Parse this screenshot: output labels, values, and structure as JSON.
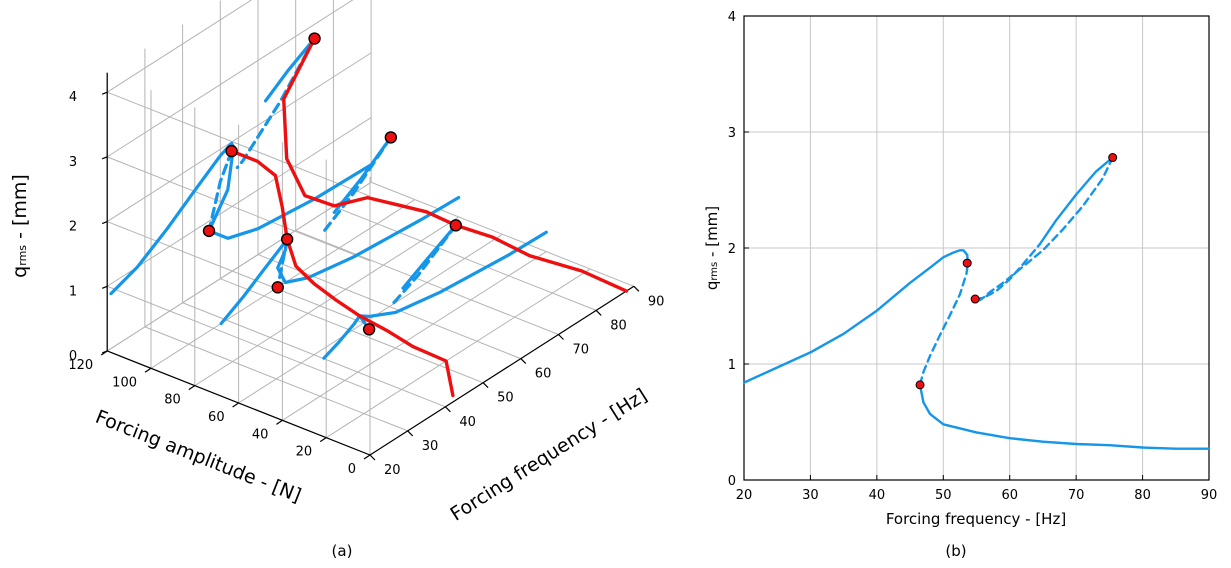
{
  "panel_a": {
    "caption": "(a)",
    "xlabel": "Forcing amplitude - [N]",
    "ylabel": "Forcing frequency - [Hz]",
    "zlabel_main": "q",
    "zlabel_sub": "rms",
    "zlabel_rest": " - [mm]",
    "xticks": [
      "120",
      "100",
      "80",
      "60",
      "40",
      "20",
      "0"
    ],
    "yticks": [
      "20",
      "30",
      "40",
      "50",
      "60",
      "70",
      "80",
      "90"
    ],
    "zticks": [
      "0",
      "1",
      "2",
      "3",
      "4"
    ]
  },
  "panel_b": {
    "caption": "(b)",
    "xlabel": "Forcing frequency - [Hz]",
    "ylabel_main": "q",
    "ylabel_sub": "rms",
    "ylabel_rest": " - [mm]",
    "xticks": [
      "20",
      "30",
      "40",
      "50",
      "60",
      "70",
      "80",
      "90"
    ],
    "yticks": [
      "0",
      "1",
      "2",
      "3",
      "4"
    ]
  },
  "chart_data": [
    {
      "type": "line",
      "view": "3d",
      "x_axis": "Forcing amplitude - [N]",
      "y_axis": "Forcing frequency - [Hz]",
      "z_axis": "qrms - [mm]",
      "xlim": [
        0,
        120
      ],
      "ylim": [
        20,
        90
      ],
      "zlim": [
        0,
        4
      ],
      "grid": true,
      "colors": {
        "frf": "#1596e8",
        "backbone": "#ee1010",
        "markers": "#ee1010"
      },
      "series": [
        {
          "style": "solid",
          "points": [
            [
              120,
              21,
              0.85
            ],
            [
              120,
              28,
              1.0
            ],
            [
              120,
              36,
              1.3
            ],
            [
              120,
              44,
              1.65
            ],
            [
              120,
              50,
              1.9
            ],
            [
              120,
              53,
              1.98
            ],
            [
              120,
              53.5,
              1.9
            ],
            [
              120,
              52,
              1.3
            ],
            [
              120,
              47,
              0.85
            ],
            [
              120,
              52,
              0.55
            ],
            [
              120,
              60,
              0.4
            ],
            [
              120,
              75,
              0.3
            ],
            [
              120,
              90,
              0.27
            ]
          ]
        },
        {
          "style": "solid",
          "points": [
            [
              80,
              27,
              0.7
            ],
            [
              80,
              33,
              0.9
            ],
            [
              80,
              38,
              1.1
            ],
            [
              80,
              42,
              1.25
            ],
            [
              80,
              44.5,
              1.35
            ],
            [
              80,
              44,
              1.2
            ],
            [
              80,
              42,
              1.0
            ],
            [
              80,
              44,
              0.7
            ],
            [
              80,
              50,
              0.55
            ],
            [
              80,
              62,
              0.42
            ],
            [
              80,
              80,
              0.33
            ],
            [
              80,
              90,
              0.3
            ]
          ]
        },
        {
          "style": "solid",
          "points": [
            [
              40,
              31,
              0.55
            ],
            [
              40,
              35,
              0.65
            ],
            [
              40,
              39,
              0.78
            ],
            [
              40,
              40.5,
              0.85
            ],
            [
              40,
              43,
              0.75
            ],
            [
              40,
              50,
              0.55
            ],
            [
              40,
              62,
              0.42
            ],
            [
              40,
              80,
              0.32
            ],
            [
              40,
              90,
              0.3
            ]
          ]
        },
        {
          "style": "solid",
          "points": [
            [
              120,
              62,
              2.3
            ],
            [
              120,
              68,
              2.55
            ],
            [
              120,
              75,
              2.78
            ]
          ]
        },
        {
          "style": "dashed",
          "points": [
            [
              120,
              75,
              2.78
            ],
            [
              120,
              66,
              2.15
            ],
            [
              120,
              56,
              1.6
            ],
            [
              120,
              54.5,
              1.55
            ]
          ]
        },
        {
          "style": "dashed",
          "points": [
            [
              120,
              53,
              1.86
            ],
            [
              120,
              50,
              1.5
            ],
            [
              120,
              47,
              0.85
            ]
          ]
        },
        {
          "style": "solid",
          "points": [
            [
              80,
              57,
              1.3
            ],
            [
              80,
              64,
              1.55
            ],
            [
              80,
              72,
              1.9
            ]
          ]
        },
        {
          "style": "dashed",
          "points": [
            [
              80,
              72,
              1.9
            ],
            [
              80,
              62,
              1.4
            ],
            [
              80,
              54,
              1.1
            ]
          ]
        },
        {
          "style": "dashed",
          "points": [
            [
              80,
              44.5,
              1.35
            ],
            [
              80,
              42,
              0.7
            ]
          ]
        },
        {
          "style": "solid",
          "points": [
            [
              40,
              52,
              0.85
            ],
            [
              40,
              58,
              1.05
            ],
            [
              40,
              66,
              1.3
            ]
          ]
        },
        {
          "style": "dashed",
          "points": [
            [
              40,
              66,
              1.3
            ],
            [
              40,
              56,
              0.9
            ],
            [
              40,
              49,
              0.7
            ]
          ]
        },
        {
          "style": "dashed",
          "points": [
            [
              40,
              40.5,
              0.85
            ],
            [
              40,
              43,
              0.55
            ]
          ]
        },
        {
          "style": "backbone",
          "points": [
            [
              0,
              88,
              0.0
            ],
            [
              10,
              82,
              0.4
            ],
            [
              20,
              74,
              0.8
            ],
            [
              30,
              70,
              1.1
            ],
            [
              40,
              66,
              1.3
            ],
            [
              50,
              64,
              1.45
            ],
            [
              60,
              62,
              1.5
            ],
            [
              70,
              60,
              1.55
            ],
            [
              80,
              57,
              1.4
            ],
            [
              90,
              55,
              1.5
            ],
            [
              100,
              56,
              1.9
            ],
            [
              110,
              61,
              2.5
            ],
            [
              120,
              75,
              2.78
            ]
          ]
        },
        {
          "style": "backbone",
          "points": [
            [
              0,
              42,
              0.1
            ],
            [
              10,
              46,
              0.35
            ],
            [
              20,
              43,
              0.55
            ],
            [
              30,
              42,
              0.7
            ],
            [
              40,
              40.5,
              0.85
            ],
            [
              50,
              40,
              0.98
            ],
            [
              60,
              40,
              1.1
            ],
            [
              70,
              41,
              1.2
            ],
            [
              80,
              44.5,
              1.35
            ],
            [
              90,
              49,
              1.55
            ],
            [
              100,
              53,
              1.75
            ],
            [
              110,
              54,
              1.8
            ],
            [
              120,
              53,
              1.86
            ]
          ]
        }
      ],
      "markers": [
        [
          120,
          75,
          2.78
        ],
        [
          120,
          53,
          1.86
        ],
        [
          120,
          47,
          0.85
        ],
        [
          80,
          72,
          1.9
        ],
        [
          80,
          44.5,
          1.35
        ],
        [
          80,
          42,
          0.7
        ],
        [
          40,
          66,
          1.3
        ],
        [
          40,
          43,
          0.55
        ]
      ]
    },
    {
      "type": "line",
      "title": "",
      "xlabel": "Forcing frequency - [Hz]",
      "ylabel": "qrms - [mm]",
      "xlim": [
        20,
        90
      ],
      "ylim": [
        0,
        4
      ],
      "grid": true,
      "colors": {
        "line": "#1596e8",
        "markers": "#ee1010"
      },
      "series": [
        {
          "style": "solid",
          "x": [
            20,
            25,
            30,
            35,
            40,
            45,
            48,
            50,
            51.5,
            52.5,
            53,
            53.2,
            53.6
          ],
          "y": [
            0.84,
            0.97,
            1.1,
            1.26,
            1.46,
            1.7,
            1.83,
            1.92,
            1.96,
            1.98,
            1.98,
            1.97,
            1.94
          ]
        },
        {
          "style": "dashed",
          "x": [
            53.6,
            53.7,
            53.5,
            52.5,
            51,
            49.5,
            48,
            47,
            46.5
          ],
          "y": [
            1.94,
            1.87,
            1.78,
            1.6,
            1.42,
            1.25,
            1.07,
            0.93,
            0.82
          ]
        },
        {
          "style": "solid",
          "x": [
            46.5,
            47,
            48,
            50,
            55,
            60,
            65,
            70,
            75,
            80,
            85,
            90
          ],
          "y": [
            0.82,
            0.67,
            0.57,
            0.48,
            0.41,
            0.36,
            0.33,
            0.31,
            0.3,
            0.28,
            0.27,
            0.27
          ]
        },
        {
          "style": "dashed",
          "x": [
            54.8,
            56,
            58,
            60,
            62,
            64.5
          ],
          "y": [
            1.56,
            1.57,
            1.63,
            1.73,
            1.86,
            2.03
          ]
        },
        {
          "style": "solid",
          "x": [
            64.5,
            67,
            70,
            73,
            75.5
          ],
          "y": [
            2.03,
            2.24,
            2.46,
            2.66,
            2.78
          ]
        },
        {
          "style": "dashed",
          "x": [
            75.5,
            74,
            71,
            68,
            65,
            62,
            59,
            57,
            56,
            55.5,
            54.8
          ],
          "y": [
            2.78,
            2.6,
            2.36,
            2.16,
            1.98,
            1.84,
            1.7,
            1.62,
            1.57,
            1.55,
            1.56
          ]
        }
      ],
      "markers": [
        [
          75.5,
          2.78
        ],
        [
          53.6,
          1.87
        ],
        [
          54.8,
          1.56
        ],
        [
          46.5,
          0.82
        ]
      ]
    }
  ]
}
